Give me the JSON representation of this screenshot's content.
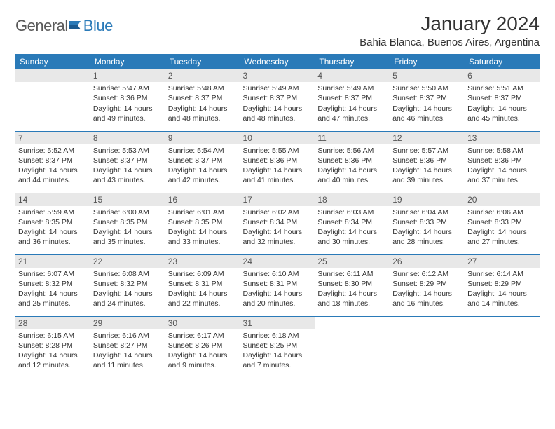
{
  "logo": {
    "word1": "General",
    "word2": "Blue"
  },
  "header": {
    "month": "January 2024",
    "location": "Bahia Blanca, Buenos Aires, Argentina"
  },
  "colors": {
    "accent": "#2a7ab8",
    "daynum_bg": "#e8e8e8",
    "text": "#333333",
    "logo_gray": "#5a5a5a"
  },
  "dayNames": [
    "Sunday",
    "Monday",
    "Tuesday",
    "Wednesday",
    "Thursday",
    "Friday",
    "Saturday"
  ],
  "weeks": [
    [
      null,
      {
        "n": "1",
        "sr": "Sunrise: 5:47 AM",
        "ss": "Sunset: 8:36 PM",
        "d1": "Daylight: 14 hours",
        "d2": "and 49 minutes."
      },
      {
        "n": "2",
        "sr": "Sunrise: 5:48 AM",
        "ss": "Sunset: 8:37 PM",
        "d1": "Daylight: 14 hours",
        "d2": "and 48 minutes."
      },
      {
        "n": "3",
        "sr": "Sunrise: 5:49 AM",
        "ss": "Sunset: 8:37 PM",
        "d1": "Daylight: 14 hours",
        "d2": "and 48 minutes."
      },
      {
        "n": "4",
        "sr": "Sunrise: 5:49 AM",
        "ss": "Sunset: 8:37 PM",
        "d1": "Daylight: 14 hours",
        "d2": "and 47 minutes."
      },
      {
        "n": "5",
        "sr": "Sunrise: 5:50 AM",
        "ss": "Sunset: 8:37 PM",
        "d1": "Daylight: 14 hours",
        "d2": "and 46 minutes."
      },
      {
        "n": "6",
        "sr": "Sunrise: 5:51 AM",
        "ss": "Sunset: 8:37 PM",
        "d1": "Daylight: 14 hours",
        "d2": "and 45 minutes."
      }
    ],
    [
      {
        "n": "7",
        "sr": "Sunrise: 5:52 AM",
        "ss": "Sunset: 8:37 PM",
        "d1": "Daylight: 14 hours",
        "d2": "and 44 minutes."
      },
      {
        "n": "8",
        "sr": "Sunrise: 5:53 AM",
        "ss": "Sunset: 8:37 PM",
        "d1": "Daylight: 14 hours",
        "d2": "and 43 minutes."
      },
      {
        "n": "9",
        "sr": "Sunrise: 5:54 AM",
        "ss": "Sunset: 8:37 PM",
        "d1": "Daylight: 14 hours",
        "d2": "and 42 minutes."
      },
      {
        "n": "10",
        "sr": "Sunrise: 5:55 AM",
        "ss": "Sunset: 8:36 PM",
        "d1": "Daylight: 14 hours",
        "d2": "and 41 minutes."
      },
      {
        "n": "11",
        "sr": "Sunrise: 5:56 AM",
        "ss": "Sunset: 8:36 PM",
        "d1": "Daylight: 14 hours",
        "d2": "and 40 minutes."
      },
      {
        "n": "12",
        "sr": "Sunrise: 5:57 AM",
        "ss": "Sunset: 8:36 PM",
        "d1": "Daylight: 14 hours",
        "d2": "and 39 minutes."
      },
      {
        "n": "13",
        "sr": "Sunrise: 5:58 AM",
        "ss": "Sunset: 8:36 PM",
        "d1": "Daylight: 14 hours",
        "d2": "and 37 minutes."
      }
    ],
    [
      {
        "n": "14",
        "sr": "Sunrise: 5:59 AM",
        "ss": "Sunset: 8:35 PM",
        "d1": "Daylight: 14 hours",
        "d2": "and 36 minutes."
      },
      {
        "n": "15",
        "sr": "Sunrise: 6:00 AM",
        "ss": "Sunset: 8:35 PM",
        "d1": "Daylight: 14 hours",
        "d2": "and 35 minutes."
      },
      {
        "n": "16",
        "sr": "Sunrise: 6:01 AM",
        "ss": "Sunset: 8:35 PM",
        "d1": "Daylight: 14 hours",
        "d2": "and 33 minutes."
      },
      {
        "n": "17",
        "sr": "Sunrise: 6:02 AM",
        "ss": "Sunset: 8:34 PM",
        "d1": "Daylight: 14 hours",
        "d2": "and 32 minutes."
      },
      {
        "n": "18",
        "sr": "Sunrise: 6:03 AM",
        "ss": "Sunset: 8:34 PM",
        "d1": "Daylight: 14 hours",
        "d2": "and 30 minutes."
      },
      {
        "n": "19",
        "sr": "Sunrise: 6:04 AM",
        "ss": "Sunset: 8:33 PM",
        "d1": "Daylight: 14 hours",
        "d2": "and 28 minutes."
      },
      {
        "n": "20",
        "sr": "Sunrise: 6:06 AM",
        "ss": "Sunset: 8:33 PM",
        "d1": "Daylight: 14 hours",
        "d2": "and 27 minutes."
      }
    ],
    [
      {
        "n": "21",
        "sr": "Sunrise: 6:07 AM",
        "ss": "Sunset: 8:32 PM",
        "d1": "Daylight: 14 hours",
        "d2": "and 25 minutes."
      },
      {
        "n": "22",
        "sr": "Sunrise: 6:08 AM",
        "ss": "Sunset: 8:32 PM",
        "d1": "Daylight: 14 hours",
        "d2": "and 24 minutes."
      },
      {
        "n": "23",
        "sr": "Sunrise: 6:09 AM",
        "ss": "Sunset: 8:31 PM",
        "d1": "Daylight: 14 hours",
        "d2": "and 22 minutes."
      },
      {
        "n": "24",
        "sr": "Sunrise: 6:10 AM",
        "ss": "Sunset: 8:31 PM",
        "d1": "Daylight: 14 hours",
        "d2": "and 20 minutes."
      },
      {
        "n": "25",
        "sr": "Sunrise: 6:11 AM",
        "ss": "Sunset: 8:30 PM",
        "d1": "Daylight: 14 hours",
        "d2": "and 18 minutes."
      },
      {
        "n": "26",
        "sr": "Sunrise: 6:12 AM",
        "ss": "Sunset: 8:29 PM",
        "d1": "Daylight: 14 hours",
        "d2": "and 16 minutes."
      },
      {
        "n": "27",
        "sr": "Sunrise: 6:14 AM",
        "ss": "Sunset: 8:29 PM",
        "d1": "Daylight: 14 hours",
        "d2": "and 14 minutes."
      }
    ],
    [
      {
        "n": "28",
        "sr": "Sunrise: 6:15 AM",
        "ss": "Sunset: 8:28 PM",
        "d1": "Daylight: 14 hours",
        "d2": "and 12 minutes."
      },
      {
        "n": "29",
        "sr": "Sunrise: 6:16 AM",
        "ss": "Sunset: 8:27 PM",
        "d1": "Daylight: 14 hours",
        "d2": "and 11 minutes."
      },
      {
        "n": "30",
        "sr": "Sunrise: 6:17 AM",
        "ss": "Sunset: 8:26 PM",
        "d1": "Daylight: 14 hours",
        "d2": "and 9 minutes."
      },
      {
        "n": "31",
        "sr": "Sunrise: 6:18 AM",
        "ss": "Sunset: 8:25 PM",
        "d1": "Daylight: 14 hours",
        "d2": "and 7 minutes."
      },
      null,
      null,
      null
    ]
  ]
}
